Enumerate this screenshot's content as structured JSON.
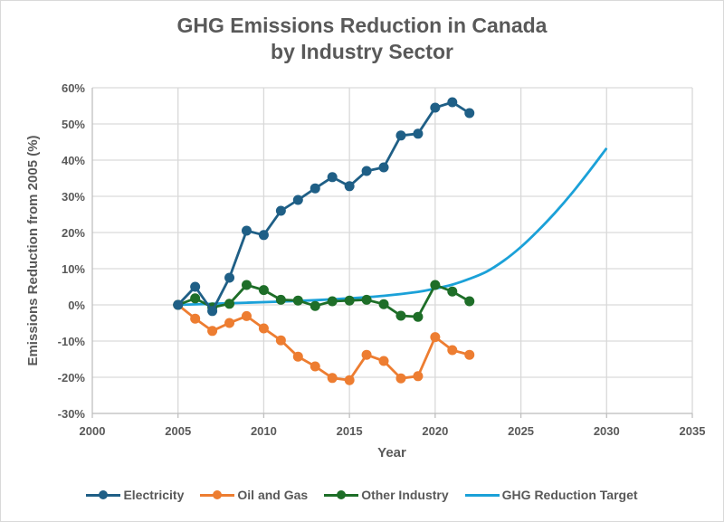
{
  "chart_data": {
    "type": "line",
    "title_lines": [
      "GHG Emissions Reduction in Canada",
      "by Industry Sector"
    ],
    "xlabel": "Year",
    "ylabel": "Emissions Reduction from 2005 (%)",
    "xlim": [
      2000,
      2035
    ],
    "ylim": [
      -30,
      60
    ],
    "x_ticks": [
      2000,
      2005,
      2010,
      2015,
      2020,
      2025,
      2030,
      2035
    ],
    "x_tick_labels": [
      "2000",
      "2005",
      "2010",
      "2015",
      "2020",
      "2025",
      "2030",
      "2035"
    ],
    "y_ticks": [
      60,
      50,
      40,
      30,
      20,
      10,
      0,
      -10,
      -20,
      -30
    ],
    "y_tick_labels": [
      "60%",
      "50%",
      "40%",
      "30%",
      "20%",
      "10%",
      "0%",
      "-10%",
      "-20%",
      "-30%"
    ],
    "grid": true,
    "legend_position": "bottom",
    "x": [
      2005,
      2006,
      2007,
      2008,
      2009,
      2010,
      2011,
      2012,
      2013,
      2014,
      2015,
      2016,
      2017,
      2018,
      2019,
      2020,
      2021,
      2022
    ],
    "series": [
      {
        "name": "Electricity",
        "color": "#1f5f86",
        "markers": true,
        "values": [
          0,
          5.0,
          -1.7,
          7.5,
          20.5,
          19.3,
          26.0,
          29.0,
          32.2,
          35.3,
          32.8,
          37.0,
          38.0,
          46.8,
          47.3,
          54.5,
          56.0,
          53.0
        ]
      },
      {
        "name": "Oil and Gas",
        "color": "#ed7d31",
        "markers": true,
        "values": [
          0,
          -3.8,
          -7.2,
          -5.0,
          -3.1,
          -6.5,
          -9.8,
          -14.3,
          -17.0,
          -20.2,
          -20.8,
          -13.8,
          -15.5,
          -20.3,
          -19.7,
          -8.9,
          -12.5,
          -13.8
        ]
      },
      {
        "name": "Other Industry",
        "color": "#1e6e28",
        "markers": true,
        "values": [
          0,
          1.8,
          -0.7,
          0.3,
          5.5,
          4.1,
          1.4,
          1.2,
          -0.3,
          1.0,
          1.2,
          1.4,
          0.2,
          -3.0,
          -3.3,
          5.5,
          3.7,
          1.0
        ]
      },
      {
        "name": "GHG Reduction Target",
        "color": "#1ba1d8",
        "markers": false,
        "x": [
          2005,
          2007,
          2009,
          2011,
          2013,
          2015,
          2017,
          2019,
          2020,
          2021,
          2022,
          2023,
          2024,
          2025,
          2026,
          2027,
          2028,
          2029,
          2030
        ],
        "values": [
          0,
          0.3,
          0.6,
          0.9,
          1.3,
          1.8,
          2.5,
          3.6,
          4.5,
          5.6,
          7.2,
          9.2,
          12.2,
          16.0,
          20.5,
          25.5,
          31.0,
          37.0,
          43.3
        ]
      }
    ]
  }
}
